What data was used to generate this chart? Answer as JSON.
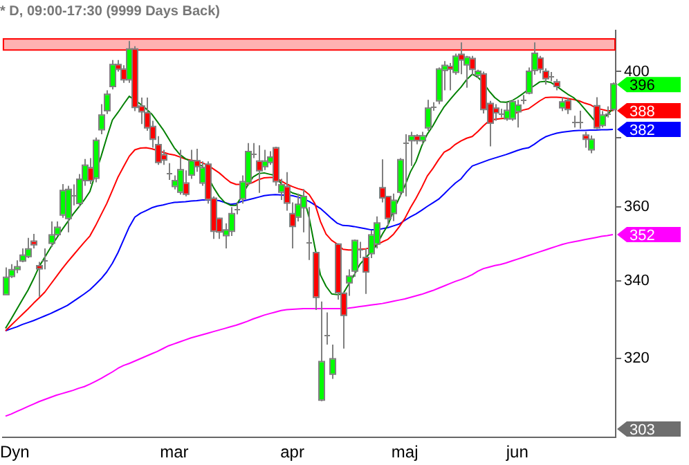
{
  "chart_data": {
    "type": "candlestick",
    "title": "* D, 09:00-17:30 (9999 Days Back)",
    "categories": [
      null,
      null,
      null,
      null,
      null,
      null,
      null,
      null,
      null,
      null,
      null,
      null,
      null,
      null,
      null,
      null,
      null,
      null,
      null,
      null,
      null,
      null,
      null,
      null,
      null,
      null,
      null,
      null,
      null,
      null,
      "mar",
      null,
      null,
      null,
      null,
      null,
      null,
      null,
      null,
      null,
      null,
      null,
      null,
      null,
      null,
      null,
      null,
      null,
      null,
      null,
      null,
      "apr",
      null,
      null,
      null,
      null,
      null,
      null,
      null,
      null,
      null,
      null,
      null,
      null,
      null,
      null,
      null,
      null,
      null,
      null,
      null,
      "maj",
      null,
      null,
      null,
      null,
      null,
      null,
      null,
      null,
      null,
      null,
      null,
      null,
      null,
      null,
      null,
      null,
      null,
      null,
      null,
      "jun",
      null,
      null,
      null,
      null,
      null,
      null,
      null,
      null,
      null,
      null,
      null,
      null,
      null,
      null,
      null,
      null,
      null
    ],
    "ohlc": [
      [
        336.5,
        343.5,
        336.5,
        340.7
      ],
      [
        341.3,
        344.4,
        340.7,
        342.7
      ],
      [
        343.2,
        345.4,
        342,
        343.5
      ],
      [
        345.4,
        348.6,
        344.9,
        346.6
      ],
      [
        346.6,
        351.5,
        346,
        348.3
      ],
      [
        350.4,
        352.6,
        348.6,
        349.8
      ],
      [
        343.8,
        345,
        335.8,
        343.3
      ],
      [
        345.4,
        348.6,
        343,
        345.4
      ],
      [
        350.2,
        356,
        349,
        352.1
      ],
      [
        352.6,
        356,
        352,
        354.2
      ],
      [
        358,
        366.5,
        357,
        364.5
      ],
      [
        357,
        366,
        353,
        364.8
      ],
      [
        363.2,
        366.4,
        360.5,
        363.2
      ],
      [
        361.2,
        369.4,
        360,
        367.7
      ],
      [
        367.7,
        373.7,
        366,
        371.7
      ],
      [
        371,
        374,
        366.5,
        367.7
      ],
      [
        368.4,
        380,
        367,
        379
      ],
      [
        382.5,
        390,
        381,
        386.5
      ],
      [
        388.2,
        394.2,
        387,
        392.8
      ],
      [
        395.6,
        403.6,
        394.5,
        402
      ],
      [
        402,
        403.6,
        400,
        400.9
      ],
      [
        400.6,
        402,
        396.5,
        397.7
      ],
      [
        397.7,
        409.6,
        396.5,
        406.9
      ],
      [
        406.9,
        408,
        387.9,
        389.2
      ],
      [
        389.2,
        392,
        384,
        387.9
      ],
      [
        387.2,
        392,
        382,
        383.1
      ],
      [
        383.1,
        385,
        377,
        379.7
      ],
      [
        377.7,
        380.4,
        372,
        372.9
      ],
      [
        374.8,
        376.4,
        372,
        373.6
      ],
      [
        369.5,
        372.5,
        367.7,
        369.5
      ],
      [
        366,
        369,
        365,
        367.3
      ],
      [
        364.4,
        376.4,
        363.5,
        370.4
      ],
      [
        366.6,
        370.4,
        363,
        363.8
      ],
      [
        369.3,
        376.4,
        368,
        373
      ],
      [
        373,
        376.7,
        370,
        371.7
      ],
      [
        367,
        373,
        366,
        371
      ],
      [
        372,
        373,
        361,
        362.3
      ],
      [
        362.3,
        363,
        351.2,
        353.5
      ],
      [
        356.7,
        357,
        351.2,
        353.3
      ],
      [
        352.3,
        355.5,
        348.6,
        353.5
      ],
      [
        353.5,
        360,
        352,
        358
      ],
      [
        359.4,
        361.3,
        358,
        359.4
      ],
      [
        362.5,
        369,
        361,
        367
      ],
      [
        367,
        378.4,
        366,
        375.7
      ],
      [
        375.4,
        378.4,
        374,
        375.4
      ],
      [
        372.9,
        377.7,
        364,
        370.5
      ],
      [
        371.7,
        376.4,
        370.5,
        372.9
      ],
      [
        372.9,
        376,
        372,
        374.1
      ],
      [
        376.8,
        377.3,
        366,
        367.4
      ],
      [
        364.4,
        368,
        362,
        366.1
      ],
      [
        365.6,
        369.9,
        359,
        361.3
      ],
      [
        358,
        361.3,
        348.6,
        354.8
      ],
      [
        357.4,
        363.8,
        356,
        360.6
      ],
      [
        360,
        365.1,
        353,
        362.8
      ],
      [
        350.4,
        360,
        345.5,
        350.4
      ],
      [
        347.3,
        347.5,
        332.3,
        335.8
      ],
      [
        310,
        334.5,
        309.6,
        319.1
      ],
      [
        326,
        331.7,
        323.5,
        326
      ],
      [
        316.3,
        323.5,
        315,
        319.8
      ],
      [
        349.6,
        350,
        335,
        337
      ],
      [
        336.5,
        337,
        322.5,
        331.1
      ],
      [
        339.6,
        343,
        336,
        341
      ],
      [
        342.7,
        351,
        341,
        350.6
      ],
      [
        348.6,
        350.4,
        346,
        348.6
      ],
      [
        346,
        348.6,
        336.5,
        342.5
      ],
      [
        347.4,
        353.6,
        346,
        352.1
      ],
      [
        350,
        357.4,
        348.6,
        355.4
      ],
      [
        365.3,
        373.6,
        361.3,
        362.8
      ],
      [
        362.8,
        363,
        354.8,
        357
      ],
      [
        358.4,
        363.8,
        356.1,
        361.7
      ],
      [
        364.4,
        374,
        363,
        373.3
      ],
      [
        378.4,
        381,
        363,
        378.4
      ],
      [
        379.3,
        381.7,
        371.7,
        380.3
      ],
      [
        380.3,
        381,
        378,
        379.3
      ],
      [
        379.3,
        381.7,
        378,
        380.3
      ],
      [
        383.1,
        391.3,
        382,
        388.6
      ],
      [
        389.2,
        390.6,
        388,
        389.2
      ],
      [
        391.2,
        401.3,
        390,
        400.6
      ],
      [
        400.6,
        403.3,
        394.2,
        401.7
      ],
      [
        401.4,
        402.7,
        394.2,
        401
      ],
      [
        400,
        405.6,
        399,
        404.6
      ],
      [
        405.2,
        409.2,
        399.2,
        403.8
      ],
      [
        402.3,
        404.9,
        395,
        404.3
      ],
      [
        403.9,
        404.9,
        399,
        400.9
      ],
      [
        399.1,
        400.6,
        398,
        399.9
      ],
      [
        399.1,
        400,
        387.2,
        388.6
      ],
      [
        390,
        391,
        377.4,
        384.5
      ],
      [
        388.6,
        390,
        385,
        387.6
      ],
      [
        387.3,
        388.6,
        386,
        387.3
      ],
      [
        385.8,
        390.6,
        385,
        387.9
      ],
      [
        385.8,
        391.3,
        385,
        390.6
      ],
      [
        387.9,
        391.3,
        383,
        389.5
      ],
      [
        391.4,
        392.8,
        390,
        391.4
      ],
      [
        393.6,
        401.3,
        393,
        399.9
      ],
      [
        400.6,
        409.2,
        399,
        405.5
      ],
      [
        404,
        404.9,
        399.5,
        400.9
      ],
      [
        399.9,
        401,
        396,
        398
      ],
      [
        398.4,
        399.9,
        397,
        398.4
      ],
      [
        396.6,
        397.7,
        394.2,
        395.6
      ],
      [
        389.1,
        392.1,
        387.9,
        390.5
      ],
      [
        390.9,
        392,
        387,
        388.6
      ],
      [
        384.5,
        386.5,
        383,
        384.5
      ],
      [
        384.5,
        388,
        382.6,
        384.5
      ],
      [
        380.5,
        381.7,
        377,
        379.7
      ],
      [
        376.6,
        380.6,
        375.4,
        379.3
      ],
      [
        389.3,
        392.1,
        382.5,
        383.1
      ],
      [
        383.8,
        387.9,
        383,
        386.5
      ],
      [
        387.2,
        389.3,
        386,
        387.2
      ],
      [
        388.6,
        396.6,
        387.9,
        396
      ]
    ],
    "value_labels": [
      null,
      null,
      null,
      null,
      null,
      null,
      null,
      null,
      null,
      null,
      null,
      null,
      null,
      null,
      null,
      null,
      null,
      null,
      null,
      null,
      null,
      null,
      null,
      null,
      null,
      null,
      null,
      null,
      null,
      null,
      null,
      null,
      null,
      null,
      null,
      null,
      null,
      null,
      null,
      null,
      null,
      null,
      null,
      null,
      null,
      null,
      null,
      null,
      null,
      null,
      null,
      null,
      null,
      null,
      null,
      null,
      null,
      null,
      null,
      null,
      null,
      null,
      null,
      null,
      null,
      null,
      null,
      null,
      null,
      null,
      null,
      null,
      null,
      null,
      null,
      null,
      null,
      null,
      null,
      null,
      null,
      null,
      null,
      null,
      null,
      null,
      null,
      null,
      null,
      null,
      null,
      null,
      null,
      null,
      null,
      null,
      null,
      null,
      null,
      null,
      null,
      null,
      null,
      null,
      null,
      null,
      null,
      null,
      "396"
    ],
    "series": [
      {
        "type": "line",
        "color": "#008000",
        "values": [
          327.6,
          330,
          332.5,
          335,
          337.5,
          340.5,
          343.8,
          346.3,
          348.8,
          351.2,
          353.6,
          355.8,
          358,
          360,
          362,
          364.4,
          369.5,
          374.5,
          380,
          385.2,
          387.5,
          390,
          392.4,
          391.2,
          390,
          388.6,
          387,
          384.7,
          382.4,
          379.7,
          377,
          375,
          373.8,
          373,
          372.3,
          371.7,
          null,
          365.5,
          363,
          361.3,
          360.5,
          360.5,
          363,
          366,
          368.5,
          369.5,
          369.7,
          369.3,
          369,
          366.6,
          365,
          364,
          363.5,
          363,
          357,
          349,
          341.5,
          338.5,
          336.5,
          336.3,
          336.5,
          339,
          341.5,
          344.3,
          346,
          347.7,
          349.5,
          352.5,
          355,
          359,
          362.5,
          366,
          370,
          373,
          377.5,
          381,
          383.5,
          386.5,
          389.2,
          391.3,
          393.3,
          395.2,
          397.5,
          399.2,
          398.2,
          396.5,
          394,
          392,
          390.7,
          390.6,
          391,
          392,
          393.2,
          394.5,
          395.6,
          396.8,
          397,
          396.6,
          395.5,
          394.2,
          393,
          392,
          390.5,
          388.5,
          386.5,
          384.5,
          385,
          386.8,
          388.6
        ]
      },
      {
        "type": "line",
        "color": "#ff0000",
        "values": [
          327,
          328.4,
          329.8,
          331.2,
          332.6,
          334.1,
          335.5,
          337,
          339,
          341,
          343,
          344.9,
          346.7,
          348.5,
          350.3,
          352,
          354.8,
          357.9,
          361,
          364.7,
          368.5,
          371.5,
          374.5,
          376.4,
          376.9,
          377,
          376.7,
          376.2,
          375.7,
          375.2,
          374.9,
          374.3,
          373.7,
          373.4,
          373.1,
          372.6,
          371.9,
          370.8,
          369.7,
          368.3,
          367,
          366.4,
          366.4,
          366.4,
          367,
          367.8,
          368.3,
          368.4,
          368.4,
          367.4,
          366.5,
          365.8,
          365.2,
          364.8,
          363.5,
          361,
          356,
          352.5,
          350.8,
          349.8,
          348.4,
          348.2,
          348.2,
          348.4,
          348.5,
          348.8,
          349.6,
          350.4,
          351.1,
          352.5,
          354.5,
          356.8,
          359.8,
          362.5,
          365.5,
          368.8,
          371,
          373.5,
          375.7,
          376.6,
          378,
          379,
          379.8,
          380.3,
          381.8,
          383.5,
          385,
          385.4,
          385.6,
          385.8,
          386.6,
          387.5,
          388.2,
          388.6,
          389.8,
          391,
          392,
          392.1,
          392.1,
          392,
          391.7,
          391.4,
          391,
          390.3,
          389.8,
          388.8,
          388.4,
          388,
          388
        ],
        "value_labels": [
          null,
          null,
          null,
          null,
          null,
          null,
          null,
          null,
          null,
          null,
          null,
          null,
          null,
          null,
          null,
          null,
          null,
          null,
          null,
          null,
          null,
          null,
          null,
          null,
          null,
          null,
          null,
          null,
          null,
          null,
          null,
          null,
          null,
          null,
          null,
          null,
          null,
          null,
          null,
          null,
          null,
          null,
          null,
          null,
          null,
          null,
          null,
          null,
          null,
          null,
          null,
          null,
          null,
          null,
          null,
          null,
          null,
          null,
          null,
          null,
          null,
          null,
          null,
          null,
          null,
          null,
          null,
          null,
          null,
          null,
          null,
          null,
          null,
          null,
          null,
          null,
          null,
          null,
          null,
          null,
          null,
          null,
          null,
          null,
          null,
          null,
          null,
          null,
          null,
          null,
          null,
          null,
          null,
          null,
          null,
          null,
          null,
          null,
          null,
          null,
          null,
          null,
          null,
          null,
          null,
          null,
          null,
          null,
          "388"
        ]
      },
      {
        "type": "line",
        "color": "#0000ff",
        "values": [
          327,
          327.5,
          328,
          328.6,
          329.1,
          329.6,
          330.2,
          330.8,
          331.4,
          332.1,
          332.8,
          333.5,
          334.5,
          335.5,
          336.5,
          337.6,
          339,
          340.5,
          342.3,
          344.6,
          347.5,
          351,
          354.5,
          357.2,
          358.3,
          359,
          359.8,
          360.3,
          360.6,
          361,
          361.3,
          361.4,
          361.5,
          361.7,
          361.8,
          362,
          362,
          362,
          361.8,
          361.3,
          360.8,
          361,
          361.6,
          362,
          362.4,
          362.8,
          363.2,
          363.4,
          363.5,
          363.4,
          363.3,
          363.2,
          362.8,
          362.3,
          361.6,
          360.6,
          359.6,
          358.2,
          356.8,
          355.5,
          354.9,
          354.8,
          354.6,
          354.3,
          354,
          353.7,
          353.7,
          354,
          354.3,
          354.8,
          355.3,
          356.3,
          357.3,
          358.1,
          359.1,
          360.2,
          361.2,
          362.2,
          363.7,
          365.3,
          366.8,
          368,
          370,
          371.7,
          372.3,
          372.9,
          373.5,
          374,
          374.5,
          375,
          375.6,
          376.2,
          376.7,
          377,
          378,
          379.2,
          380.2,
          380.8,
          381.3,
          381.6,
          381.8,
          382,
          382.1,
          382.1,
          382.2,
          382.2,
          382.3,
          382.3,
          382.4
        ],
        "value_labels": [
          null,
          null,
          null,
          null,
          null,
          null,
          null,
          null,
          null,
          null,
          null,
          null,
          null,
          null,
          null,
          null,
          null,
          null,
          null,
          null,
          null,
          null,
          null,
          null,
          null,
          null,
          null,
          null,
          null,
          null,
          null,
          null,
          null,
          null,
          null,
          null,
          null,
          null,
          null,
          null,
          null,
          null,
          null,
          null,
          null,
          null,
          null,
          null,
          null,
          null,
          null,
          null,
          null,
          null,
          null,
          null,
          null,
          null,
          null,
          null,
          null,
          null,
          null,
          null,
          null,
          null,
          null,
          null,
          null,
          null,
          null,
          null,
          null,
          null,
          null,
          null,
          null,
          null,
          null,
          null,
          null,
          null,
          null,
          null,
          null,
          null,
          null,
          null,
          null,
          null,
          null,
          null,
          null,
          null,
          null,
          null,
          null,
          null,
          null,
          null,
          null,
          null,
          null,
          null,
          null,
          null,
          null,
          null,
          "382"
        ]
      },
      {
        "type": "line",
        "color": "#ff00ff",
        "values": [
          306,
          306.5,
          307.1,
          307.7,
          308.3,
          308.9,
          309.5,
          310,
          310.5,
          311,
          311.4,
          311.8,
          312.2,
          312.7,
          313.1,
          313.7,
          314.4,
          315.1,
          315.9,
          316.7,
          317.6,
          318.3,
          318.8,
          319.4,
          320,
          320.6,
          321.2,
          321.8,
          322.5,
          323.2,
          323.7,
          324.2,
          324.7,
          325.2,
          325.6,
          326,
          326.4,
          326.8,
          327.2,
          327.6,
          328,
          328.4,
          328.9,
          329.4,
          330,
          330.5,
          331,
          331.4,
          331.8,
          332.2,
          332.4,
          332.5,
          332.6,
          332.7,
          332.7,
          332.7,
          332.7,
          332.7,
          332.7,
          332.7,
          332.7,
          332.8,
          333,
          333.2,
          333.4,
          333.6,
          333.8,
          334,
          334.3,
          334.6,
          334.9,
          335.2,
          335.6,
          336,
          336.4,
          336.9,
          337.4,
          338,
          338.6,
          339.2,
          339.8,
          340.3,
          340.9,
          341.6,
          342.5,
          343.2,
          343.6,
          344,
          344.3,
          344.7,
          345.2,
          345.7,
          346.2,
          346.7,
          347.2,
          347.7,
          348.2,
          348.7,
          349.2,
          349.7,
          350.1,
          350.4,
          350.7,
          351,
          351.3,
          351.6,
          351.9,
          352.1,
          352.4
        ],
        "value_labels": [
          null,
          null,
          null,
          null,
          null,
          null,
          null,
          null,
          null,
          null,
          null,
          null,
          null,
          null,
          null,
          null,
          null,
          null,
          null,
          null,
          null,
          null,
          null,
          null,
          null,
          null,
          null,
          null,
          null,
          null,
          null,
          null,
          null,
          null,
          null,
          null,
          null,
          null,
          null,
          null,
          null,
          null,
          null,
          null,
          null,
          null,
          null,
          null,
          null,
          null,
          null,
          null,
          null,
          null,
          null,
          null,
          null,
          null,
          null,
          null,
          null,
          null,
          null,
          null,
          null,
          null,
          null,
          null,
          null,
          null,
          null,
          null,
          null,
          null,
          null,
          null,
          null,
          null,
          null,
          null,
          null,
          null,
          null,
          null,
          null,
          null,
          null,
          null,
          null,
          null,
          null,
          null,
          null,
          null,
          null,
          null,
          null,
          null,
          null,
          null,
          null,
          null,
          null,
          null,
          null,
          null,
          null,
          null,
          "352"
        ]
      }
    ],
    "ylim": [
      301,
      413
    ],
    "yticks": [
      320,
      340,
      360,
      {
        "value": 380,
        "label": null
      },
      400
    ],
    "log": true,
    "grid": false,
    "legend": false,
    "bands": [
      {
        "axis": "y",
        "from": 407,
        "to": 410.5,
        "color": "#ff0000"
      }
    ],
    "annotations": [
      "303",
      "Dyn"
    ]
  }
}
